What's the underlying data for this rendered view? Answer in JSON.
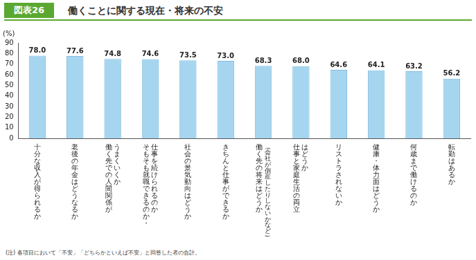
{
  "chart_data": {
    "type": "bar",
    "figure_label": "図表26",
    "title": "働くことに関する現在・将来の不安",
    "y_label": "(%)",
    "note": "(注) 各項目において「不安」「どちらかといえば不安」と回答した者の合計。",
    "categories": [
      [
        "十分な収入が得られるか"
      ],
      [
        "老後の年金はどうなるか"
      ],
      [
        "働く先での人間関係が",
        "うまくいくか"
      ],
      [
        "そもそも就職できるのか・",
        "仕事を続けられるのか"
      ],
      [
        "社会の景気動向はどうか"
      ],
      [
        "きちんと仕事ができるか"
      ],
      [
        "働く先の将来はどうか",
        "（会社が倒産したりしないかなど）"
      ],
      [
        "仕事と家庭生活の両立",
        "はどうか"
      ],
      [
        "リストラされないか"
      ],
      [
        "健康・体力面はどうか"
      ],
      [
        "何歳まで働けるのか"
      ],
      [
        "転勤はあるか"
      ]
    ],
    "values": [
      78.0,
      77.6,
      74.8,
      74.6,
      73.5,
      73.0,
      68.3,
      68.0,
      64.6,
      64.1,
      63.2,
      56.2
    ],
    "value_labels": [
      "78.0",
      "77.6",
      "74.8",
      "74.6",
      "73.5",
      "73.0",
      "68.3",
      "68.0",
      "64.6",
      "64.1",
      "63.2",
      "56.2"
    ],
    "color": "#a6d5ef",
    "ylim": [
      0,
      90
    ],
    "yticks": [
      0,
      10,
      20,
      30,
      40,
      50,
      60,
      70,
      80,
      90
    ],
    "grid": false,
    "data_labels": true
  }
}
